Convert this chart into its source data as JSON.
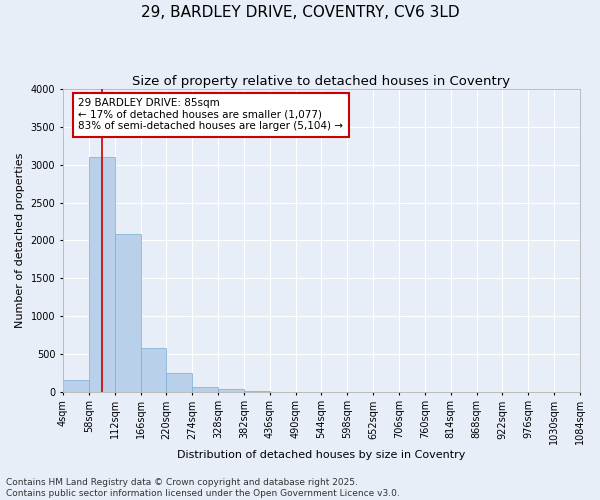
{
  "title_line1": "29, BARDLEY DRIVE, COVENTRY, CV6 3LD",
  "title_line2": "Size of property relative to detached houses in Coventry",
  "xlabel": "Distribution of detached houses by size in Coventry",
  "ylabel": "Number of detached properties",
  "bar_color": "#b8d0ea",
  "bar_edge_color": "#7aadd4",
  "background_color": "#e8eef8",
  "grid_color": "#ffffff",
  "fig_bg_color": "#e8eef8",
  "annotation_line_color": "#cc0000",
  "annotation_box_color": "#cc0000",
  "annotation_text_line1": "29 BARDLEY DRIVE: 85sqm",
  "annotation_text_line2": "← 17% of detached houses are smaller (1,077)",
  "annotation_text_line3": "83% of semi-detached houses are larger (5,104) →",
  "property_size_sqm": 85,
  "categories": [
    "4sqm",
    "58sqm",
    "112sqm",
    "166sqm",
    "220sqm",
    "274sqm",
    "328sqm",
    "382sqm",
    "436sqm",
    "490sqm",
    "544sqm",
    "598sqm",
    "652sqm",
    "706sqm",
    "760sqm",
    "814sqm",
    "868sqm",
    "922sqm",
    "976sqm",
    "1030sqm",
    "1084sqm"
  ],
  "bin_edges": [
    4,
    58,
    112,
    166,
    220,
    274,
    328,
    382,
    436,
    490,
    544,
    598,
    652,
    706,
    760,
    814,
    868,
    922,
    976,
    1030,
    1084
  ],
  "bar_heights": [
    150,
    3100,
    2080,
    570,
    240,
    65,
    35,
    10,
    0,
    0,
    0,
    0,
    0,
    0,
    0,
    0,
    0,
    0,
    0,
    0
  ],
  "ylim": [
    0,
    4000
  ],
  "yticks": [
    0,
    500,
    1000,
    1500,
    2000,
    2500,
    3000,
    3500,
    4000
  ],
  "footer_text": "Contains HM Land Registry data © Crown copyright and database right 2025.\nContains public sector information licensed under the Open Government Licence v3.0.",
  "title_fontsize": 11,
  "subtitle_fontsize": 9.5,
  "axis_label_fontsize": 8,
  "tick_fontsize": 7,
  "footer_fontsize": 6.5,
  "annotation_fontsize": 7.5
}
